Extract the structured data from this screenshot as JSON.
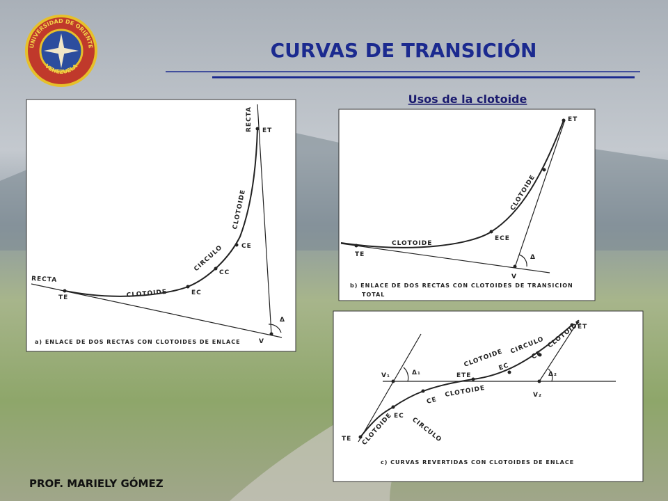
{
  "header": {
    "title": "CURVAS DE TRANSICIÓN",
    "subtitle": "Usos de la clotoide"
  },
  "logo": {
    "top_text": "UNIVERSIDAD DE ORIENTE",
    "bottom_text": "VENEZUELA"
  },
  "diagrams": [
    {
      "labels": [
        "RECTA",
        "ET",
        "CLOTOIDE",
        "CE",
        "CIRCULO",
        "CC",
        "EC",
        "CLOTOIDE",
        "RECTA",
        "TE",
        "Δ",
        "V"
      ],
      "caption": [
        "a) ENLACE DE DOS RECTAS CON CLOTOIDES DE ENLACE"
      ]
    },
    {
      "labels": [
        "ET",
        "CLOTOIDE",
        "ECE",
        "Δ",
        "V",
        "CLOTOIDE",
        "TE"
      ],
      "caption": [
        "b) ENLACE DE DOS RECTAS CON CLOTOIDES DE TRANSICION",
        "TOTAL"
      ]
    },
    {
      "labels": [
        "ET",
        "CLOTOIDE",
        "CE",
        "CIRCULO",
        "EC",
        "CLOTOIDE",
        "Δ₂",
        "V₂",
        "ETE",
        "V₁",
        "Δ₁",
        "CE",
        "CLOTOIDE",
        "EC",
        "CIRCULO",
        "TE",
        "CLOTOIDE"
      ],
      "caption": [
        "c) CURVAS REVERTIDAS CON CLOTOIDES DE ENLACE"
      ]
    }
  ],
  "footer": "PROF. MARIELY GÓMEZ"
}
